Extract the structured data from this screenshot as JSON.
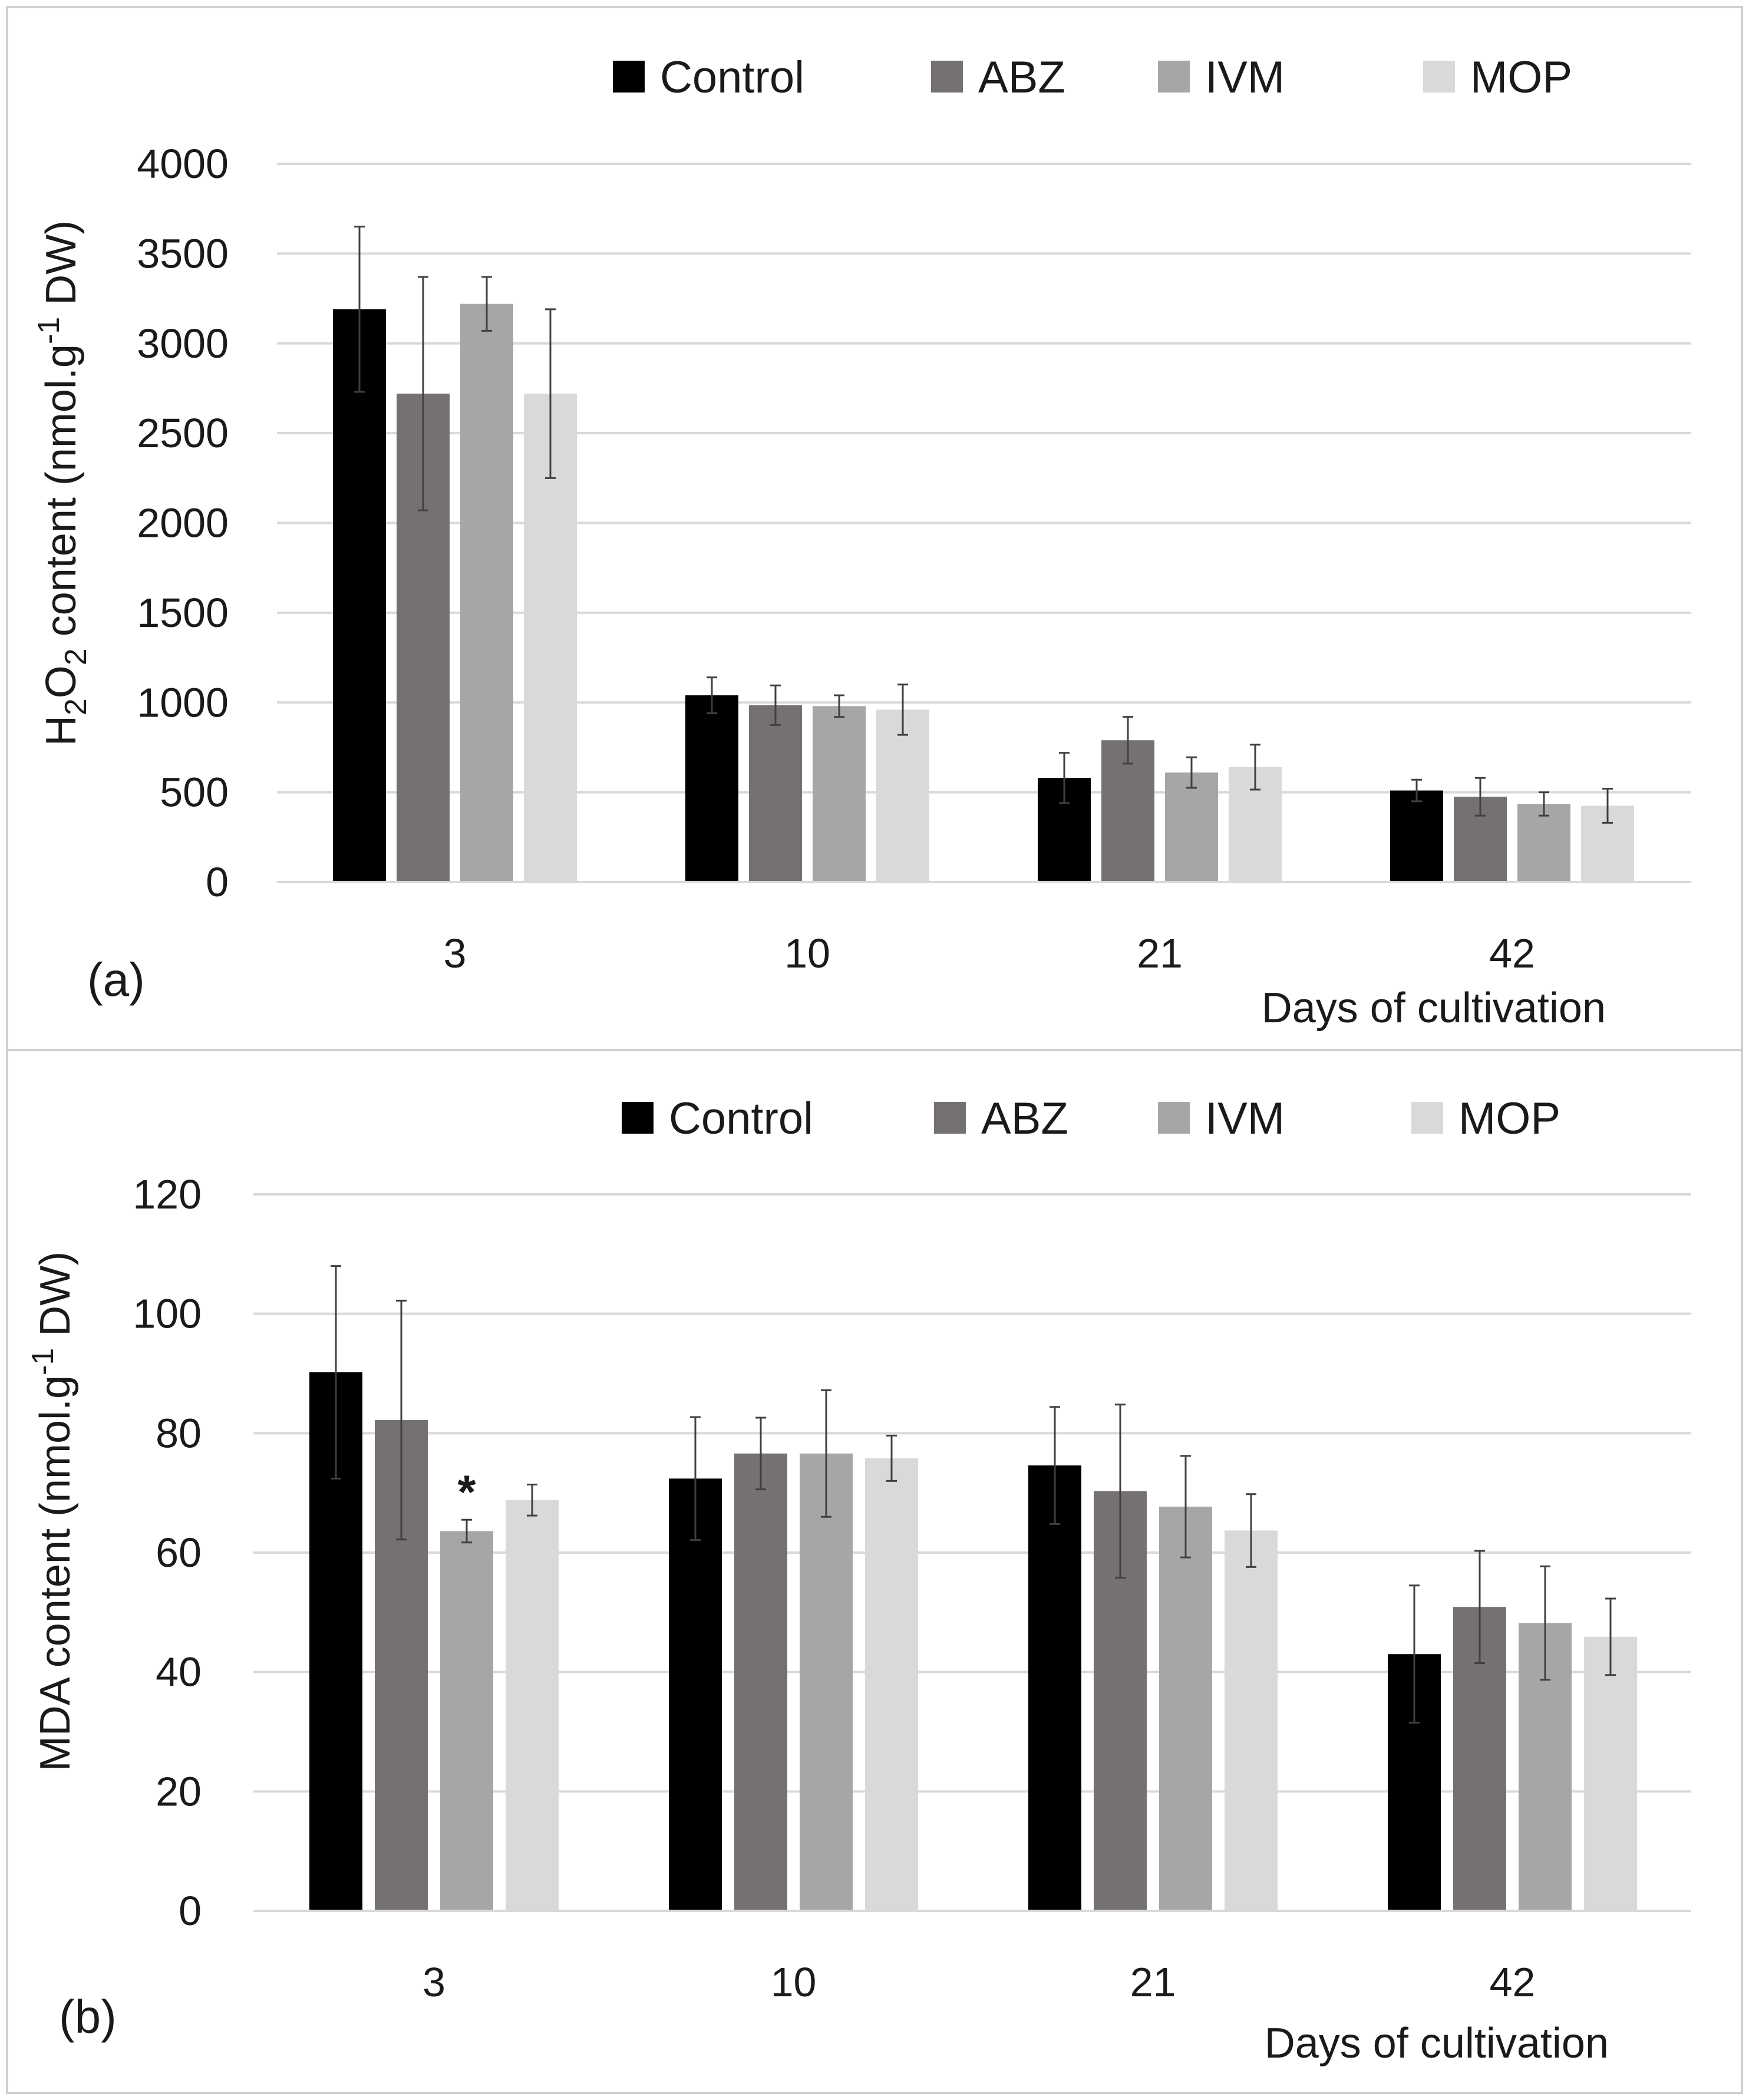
{
  "chart_data": [
    {
      "type": "bar",
      "panel_label": "(a)",
      "title": "",
      "xlabel": "Days of cultivation",
      "ylabel": "H2O2 content (nmol.g-1 DW)",
      "ylabel_parts": {
        "h": "H",
        "sub": "2",
        "o": "O",
        "sub2": "2",
        "rest": " content (nmol.g",
        "sup": "-1",
        "tail": " DW)"
      },
      "categories": [
        "3",
        "10",
        "21",
        "42"
      ],
      "ylim": [
        0,
        4000
      ],
      "yticks": [
        0,
        500,
        1000,
        1500,
        2000,
        2500,
        3000,
        3500,
        4000
      ],
      "grid": true,
      "legend_position": "top",
      "series": [
        {
          "name": "Control",
          "color": "#000000",
          "values": [
            3190,
            1040,
            580,
            510
          ],
          "errors": [
            460,
            100,
            140,
            60
          ]
        },
        {
          "name": "ABZ",
          "color": "#767171",
          "values": [
            2720,
            985,
            790,
            475
          ],
          "errors": [
            650,
            110,
            130,
            105
          ]
        },
        {
          "name": "IVM",
          "color": "#a6a6a6",
          "values": [
            3220,
            980,
            610,
            435
          ],
          "errors": [
            150,
            60,
            85,
            65
          ]
        },
        {
          "name": "MOP",
          "color": "#d9d9d9",
          "values": [
            2720,
            960,
            640,
            425
          ],
          "errors": [
            470,
            140,
            125,
            95
          ]
        }
      ],
      "annotations": []
    },
    {
      "type": "bar",
      "panel_label": "(b)",
      "title": "",
      "xlabel": "Days of cultivation",
      "ylabel": "MDA content (nmol.g-1 DW)",
      "ylabel_parts": {
        "rest": "MDA content (nmol.g",
        "sup": "-1",
        "tail": " DW)"
      },
      "categories": [
        "3",
        "10",
        "21",
        "42"
      ],
      "ylim": [
        0,
        120
      ],
      "yticks": [
        0,
        20,
        40,
        60,
        80,
        100,
        120
      ],
      "grid": true,
      "legend_position": "top",
      "series": [
        {
          "name": "Control",
          "color": "#000000",
          "values": [
            90.2,
            72.4,
            74.6,
            43.0
          ],
          "errors": [
            17.8,
            10.3,
            9.8,
            11.5
          ]
        },
        {
          "name": "ABZ",
          "color": "#767171",
          "values": [
            82.2,
            76.6,
            70.3,
            50.9
          ],
          "errors": [
            20.0,
            6.0,
            14.5,
            9.4
          ]
        },
        {
          "name": "IVM",
          "color": "#a6a6a6",
          "values": [
            63.6,
            76.6,
            67.7,
            48.2
          ],
          "errors": [
            1.9,
            10.6,
            8.5,
            9.5
          ]
        },
        {
          "name": "MOP",
          "color": "#d9d9d9",
          "values": [
            68.8,
            75.8,
            63.7,
            45.9
          ],
          "errors": [
            2.6,
            3.8,
            6.1,
            6.4
          ]
        }
      ],
      "annotations": [
        {
          "text": "*",
          "category": "3",
          "series": "IVM"
        }
      ]
    }
  ]
}
